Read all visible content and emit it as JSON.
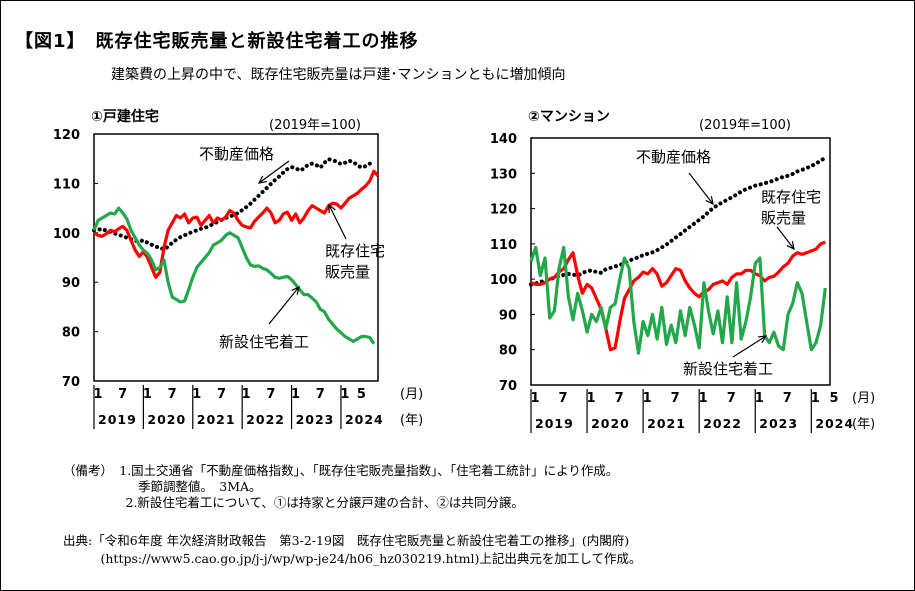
{
  "figure": {
    "title": "【図1】　既存住宅販売量と新設住宅着工の推移",
    "subtitle": "建築費の上昇の中で、既存住宅販売量は戸建･マンションともに増加傾向"
  },
  "notes": [
    "（備考）　1.国土交通省「不動産価格指数」、「既存住宅販売量指数」、「住宅着工統計」により作成。",
    "　　　　　　季節調整値。　3MA。",
    "　　　　　2.新設住宅着工について、①は持家と分譲戸建の合計、②は共同分譲。"
  ],
  "source": [
    "出典:「令和6年度 年次経済財政報告　第3-2-19図　既存住宅販売量と新設住宅着工の推移」(内閣府)",
    "　　　(https://www5.cao.go.jp/j-j/wp/wp-je24/h06_hz030219.html)上記出典元を加工して作成。"
  ],
  "chart_data": [
    {
      "type": "line",
      "title": "①戸建住宅",
      "base_note": "(2019年=100)",
      "ylim": [
        70,
        120
      ],
      "yticks": [
        "70",
        "80",
        "90",
        "100",
        "110",
        "120"
      ],
      "month_ticks": [
        "1",
        "7",
        "1",
        "7",
        "1",
        "7",
        "1",
        "7",
        "1",
        "7",
        "1",
        "5"
      ],
      "year_labels": [
        "2019",
        "2020",
        "2021",
        "2022",
        "2023",
        "2024"
      ],
      "month_unit": "(月)",
      "year_unit": "(年)",
      "start": "2019-01",
      "series": [
        {
          "name": "不動産価格",
          "color": "#000000",
          "style": "dotted",
          "values": [
            100.5,
            100.6,
            100.8,
            100.4,
            100.2,
            99.9,
            99.6,
            99.3,
            99.0,
            98.7,
            98.4,
            98.2,
            98.5,
            98.0,
            97.6,
            97.2,
            97.0,
            96.6,
            97.2,
            98.0,
            98.6,
            99.1,
            99.5,
            99.9,
            100.2,
            100.5,
            100.8,
            101.0,
            101.4,
            101.8,
            102.2,
            102.6,
            103.0,
            103.3,
            103.6,
            104.0,
            104.6,
            105.2,
            105.9,
            106.7,
            107.5,
            108.3,
            109.1,
            109.9,
            110.7,
            111.4,
            112.2,
            112.9,
            113.3,
            113.1,
            112.6,
            113.0,
            113.8,
            114.0,
            113.7,
            113.2,
            114.2,
            114.9,
            114.7,
            114.4,
            113.9,
            114.2,
            114.6,
            114.3,
            113.7,
            113.2,
            113.5,
            114.0,
            113.6
          ]
        },
        {
          "name": "既存住宅販売量",
          "color": "#ff0000",
          "style": "solid",
          "values": [
            100.0,
            99.5,
            99.3,
            99.8,
            100.5,
            100.2,
            100.8,
            101.3,
            100.5,
            98.5,
            96.5,
            95.2,
            96.2,
            95.0,
            93.0,
            91.0,
            92.0,
            97.0,
            100.5,
            102.0,
            103.5,
            103.0,
            103.8,
            102.0,
            103.0,
            103.2,
            101.5,
            102.5,
            103.5,
            102.0,
            103.0,
            102.5,
            103.2,
            104.5,
            104.0,
            102.5,
            101.5,
            101.2,
            101.0,
            102.3,
            103.2,
            104.0,
            105.0,
            104.0,
            102.0,
            102.5,
            103.8,
            104.2,
            102.5,
            103.8,
            102.0,
            103.0,
            104.5,
            105.5,
            105.0,
            104.5,
            104.0,
            105.5,
            106.0,
            105.8,
            105.0,
            106.0,
            107.0,
            107.5,
            108.0,
            108.8,
            109.5,
            110.5,
            112.5,
            111.5
          ]
        },
        {
          "name": "新設住宅着工",
          "color": "#22a84a",
          "style": "solid",
          "values": [
            100.5,
            102.5,
            103.0,
            103.5,
            104.0,
            103.8,
            105.0,
            104.0,
            102.8,
            100.5,
            99.0,
            97.5,
            96.5,
            95.8,
            94.5,
            92.5,
            93.0,
            94.5,
            90.0,
            87.0,
            86.5,
            86.0,
            86.2,
            88.5,
            91.0,
            93.0,
            94.0,
            95.0,
            96.0,
            97.5,
            98.0,
            98.5,
            99.5,
            100.0,
            99.5,
            99.0,
            97.0,
            95.0,
            93.5,
            93.2,
            93.3,
            92.8,
            92.5,
            91.8,
            91.0,
            90.8,
            91.0,
            91.2,
            90.5,
            89.5,
            88.5,
            87.5,
            87.5,
            86.8,
            86.0,
            84.5,
            84.0,
            82.5,
            81.5,
            80.5,
            79.8,
            79.0,
            78.5,
            78.0,
            78.5,
            79.0,
            79.0,
            78.8,
            77.5
          ]
        }
      ],
      "annotations": {
        "price": "不動産価格",
        "sales": [
          "既存住宅",
          "販売量"
        ],
        "starts": "新設住宅着工"
      }
    },
    {
      "type": "line",
      "title": "②マンション",
      "base_note": "(2019年=100)",
      "ylim": [
        70,
        140
      ],
      "yticks": [
        "70",
        "80",
        "90",
        "100",
        "110",
        "120",
        "130",
        "140"
      ],
      "month_ticks": [
        "1",
        "7",
        "1",
        "7",
        "1",
        "7",
        "1",
        "7",
        "1",
        "7",
        "1",
        "5"
      ],
      "year_labels": [
        "2019",
        "2020",
        "2021",
        "2022",
        "2023",
        "2024"
      ],
      "month_unit": "(月)",
      "year_unit": "(年)",
      "start": "2019-01",
      "series": [
        {
          "name": "不動産価格",
          "color": "#000000",
          "style": "dotted",
          "values": [
            98.5,
            98.8,
            99.2,
            99.6,
            100.0,
            100.4,
            100.8,
            101.2,
            101.5,
            101.3,
            101.0,
            101.8,
            102.2,
            102.5,
            102.0,
            101.8,
            102.8,
            103.2,
            103.6,
            104.0,
            104.5,
            105.2,
            105.8,
            106.2,
            106.8,
            107.2,
            107.6,
            108.2,
            109.0,
            109.8,
            110.8,
            111.8,
            112.8,
            113.8,
            114.8,
            115.8,
            116.8,
            117.8,
            119.0,
            120.2,
            121.0,
            121.8,
            122.5,
            123.2,
            124.0,
            124.8,
            125.5,
            126.0,
            126.5,
            126.8,
            127.2,
            127.5,
            128.0,
            128.5,
            129.0,
            129.3,
            129.8,
            130.5,
            131.0,
            131.5,
            132.0,
            132.8,
            133.5,
            134.5
          ]
        },
        {
          "name": "既存住宅販売量",
          "color": "#ff0000",
          "style": "solid",
          "values": [
            99.0,
            98.5,
            98.5,
            99.0,
            100.0,
            100.5,
            102.0,
            103.0,
            105.5,
            107.5,
            101.0,
            96.0,
            98.5,
            97.5,
            94.5,
            91.5,
            86.0,
            80.0,
            80.5,
            88.0,
            94.5,
            97.0,
            99.5,
            100.5,
            102.0,
            101.5,
            103.0,
            101.5,
            98.0,
            99.0,
            101.0,
            103.0,
            102.5,
            99.5,
            97.5,
            96.0,
            95.0,
            96.5,
            97.0,
            98.5,
            99.0,
            99.5,
            98.5,
            100.5,
            101.5,
            101.5,
            102.5,
            102.5,
            101.5,
            101.0,
            99.5,
            100.5,
            100.8,
            102.0,
            103.5,
            104.5,
            106.5,
            107.5,
            107.0,
            107.5,
            108.0,
            108.5,
            110.0,
            110.5
          ]
        },
        {
          "name": "新設住宅着工",
          "color": "#22a84a",
          "style": "solid",
          "values": [
            105.0,
            109.0,
            101.0,
            106.0,
            89.0,
            91.0,
            103.0,
            109.0,
            95.0,
            88.5,
            96.0,
            91.0,
            85.0,
            90.0,
            88.0,
            92.0,
            86.0,
            92.0,
            93.0,
            100.0,
            106.0,
            103.0,
            88.0,
            79.0,
            88.0,
            84.0,
            90.0,
            83.0,
            92.0,
            81.5,
            87.0,
            82.0,
            91.0,
            84.0,
            92.0,
            87.0,
            80.5,
            99.0,
            91.0,
            84.5,
            91.0,
            82.0,
            95.0,
            82.0,
            99.0,
            83.0,
            88.0,
            95.0,
            104.5,
            106.0,
            84.0,
            82.0,
            85.0,
            81.0,
            80.0,
            90.0,
            93.0,
            99.0,
            96.0,
            88.0,
            80.0,
            82.0,
            87.0,
            97.5
          ]
        }
      ],
      "annotations": {
        "price": "不動産価格",
        "sales": [
          "既存住宅",
          "販売量"
        ],
        "starts": "新設住宅着工"
      }
    }
  ]
}
